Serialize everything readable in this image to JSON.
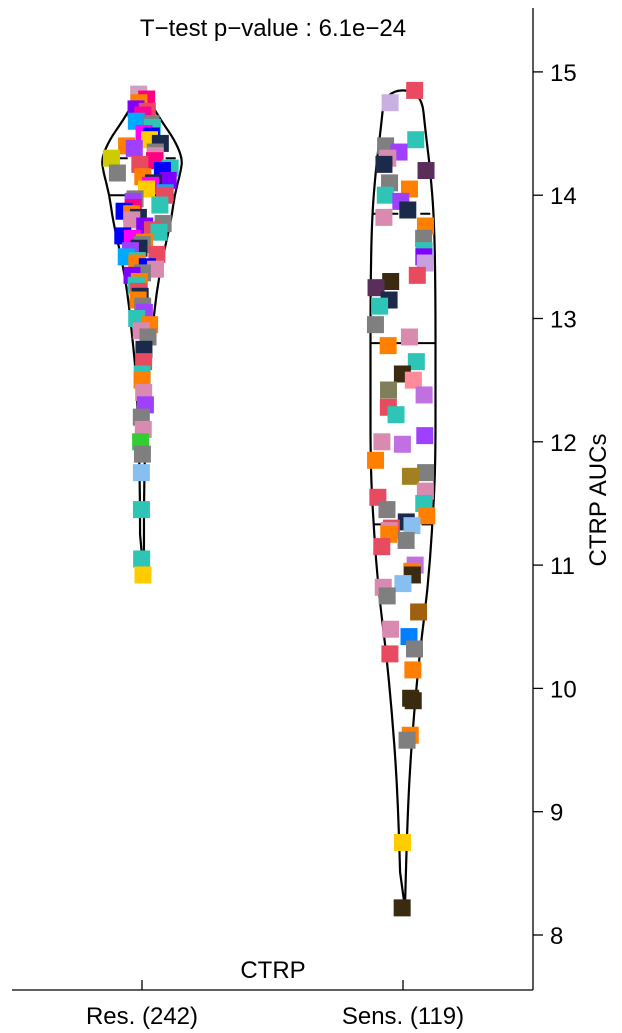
{
  "chart_data": {
    "type": "violin",
    "title": "T−test p−value : 6.1e−24",
    "panel_label": "CTRP",
    "ylabel": "CTRP AUCs",
    "ylim": [
      7.6,
      15.5
    ],
    "yticks": [
      "8",
      "9",
      "10",
      "11",
      "12",
      "13",
      "14",
      "15"
    ],
    "orientation_y_axis": "right",
    "grid": false,
    "categories": [
      "Res. (242)",
      "Sens. (119)"
    ],
    "groups": [
      {
        "name": "Res. (242)",
        "n": 242,
        "min": 10.9,
        "max": 14.85,
        "median": 14.0,
        "q1": 13.35,
        "q3": 14.3,
        "violin": [
          [
            10.9,
            0.03
          ],
          [
            11.6,
            0.03
          ],
          [
            12.2,
            0.06
          ],
          [
            12.6,
            0.1
          ],
          [
            12.9,
            0.16
          ],
          [
            13.2,
            0.22
          ],
          [
            13.5,
            0.32
          ],
          [
            13.8,
            0.45
          ],
          [
            14.0,
            0.5
          ],
          [
            14.2,
            0.6
          ],
          [
            14.3,
            0.62
          ],
          [
            14.45,
            0.5
          ],
          [
            14.6,
            0.3
          ],
          [
            14.75,
            0.13
          ],
          [
            14.85,
            0.03
          ]
        ]
      },
      {
        "name": "Sens. (119)",
        "n": 119,
        "min": 8.22,
        "max": 14.85,
        "median": 12.8,
        "q1": 11.33,
        "q3": 13.85,
        "violin": [
          [
            8.22,
            0.03
          ],
          [
            8.8,
            0.06
          ],
          [
            9.3,
            0.1
          ],
          [
            9.8,
            0.17
          ],
          [
            10.3,
            0.26
          ],
          [
            10.8,
            0.38
          ],
          [
            11.3,
            0.45
          ],
          [
            11.8,
            0.5
          ],
          [
            12.5,
            0.5
          ],
          [
            13.2,
            0.5
          ],
          [
            13.8,
            0.48
          ],
          [
            14.2,
            0.42
          ],
          [
            14.5,
            0.35
          ],
          [
            14.85,
            0.28
          ]
        ]
      }
    ],
    "points": {
      "Res. (242)": [
        {
          "y": 14.82,
          "c": "#d0a0c0"
        },
        {
          "y": 14.78,
          "c": "#ff0080"
        },
        {
          "y": 14.75,
          "c": "#ff7f00"
        },
        {
          "y": 14.7,
          "c": "#8000ff"
        },
        {
          "y": 14.68,
          "c": "#e84a5f"
        },
        {
          "y": 14.65,
          "c": "#ff0099"
        },
        {
          "y": 14.6,
          "c": "#00aaff"
        },
        {
          "y": 14.58,
          "c": "#7f7f7f"
        },
        {
          "y": 14.55,
          "c": "#2ec4b6"
        },
        {
          "y": 14.5,
          "c": "#ff00ff"
        },
        {
          "y": 14.48,
          "c": "#0000ff"
        },
        {
          "y": 14.45,
          "c": "#ffcc00"
        },
        {
          "y": 14.42,
          "c": "#1b2a4a"
        },
        {
          "y": 14.4,
          "c": "#ff7f00"
        },
        {
          "y": 14.38,
          "c": "#a040ff"
        },
        {
          "y": 14.35,
          "c": "#7f7f7f"
        },
        {
          "y": 14.32,
          "c": "#d98ab0"
        },
        {
          "y": 14.3,
          "c": "#cccc00"
        },
        {
          "y": 14.28,
          "c": "#ff0080"
        },
        {
          "y": 14.25,
          "c": "#e84a5f"
        },
        {
          "y": 14.22,
          "c": "#2ec4b6"
        },
        {
          "y": 14.2,
          "c": "#0000ff"
        },
        {
          "y": 14.18,
          "c": "#7f7f7f"
        },
        {
          "y": 14.15,
          "c": "#ff7f00"
        },
        {
          "y": 14.12,
          "c": "#8000ff"
        },
        {
          "y": 14.1,
          "c": "#1b2a4a"
        },
        {
          "y": 14.08,
          "c": "#ff00ff"
        },
        {
          "y": 14.05,
          "c": "#ffcc00"
        },
        {
          "y": 14.02,
          "c": "#00aaff"
        },
        {
          "y": 14.0,
          "c": "#e84a5f"
        },
        {
          "y": 13.97,
          "c": "#7f7f7f"
        },
        {
          "y": 13.95,
          "c": "#a040ff"
        },
        {
          "y": 13.92,
          "c": "#2ec4b6"
        },
        {
          "y": 13.9,
          "c": "#ff0080"
        },
        {
          "y": 13.87,
          "c": "#0000ff"
        },
        {
          "y": 13.85,
          "c": "#ff7f00"
        },
        {
          "y": 13.82,
          "c": "#1b2a4a"
        },
        {
          "y": 13.8,
          "c": "#d98ab0"
        },
        {
          "y": 13.77,
          "c": "#7f7f7f"
        },
        {
          "y": 13.75,
          "c": "#8000ff"
        },
        {
          "y": 13.72,
          "c": "#e84a5f"
        },
        {
          "y": 13.7,
          "c": "#2ec4b6"
        },
        {
          "y": 13.67,
          "c": "#0000ff"
        },
        {
          "y": 13.65,
          "c": "#ff00ff"
        },
        {
          "y": 13.62,
          "c": "#ff7f00"
        },
        {
          "y": 13.6,
          "c": "#7f7f7f"
        },
        {
          "y": 13.57,
          "c": "#1b2a4a"
        },
        {
          "y": 13.55,
          "c": "#a040ff"
        },
        {
          "y": 13.52,
          "c": "#e84a5f"
        },
        {
          "y": 13.5,
          "c": "#00aaff"
        },
        {
          "y": 13.47,
          "c": "#2ec4b6"
        },
        {
          "y": 13.45,
          "c": "#ff7f00"
        },
        {
          "y": 13.42,
          "c": "#0000ff"
        },
        {
          "y": 13.4,
          "c": "#d98ab0"
        },
        {
          "y": 13.37,
          "c": "#7f7f7f"
        },
        {
          "y": 13.35,
          "c": "#8000ff"
        },
        {
          "y": 13.3,
          "c": "#ff7f00"
        },
        {
          "y": 13.27,
          "c": "#2ec4b6"
        },
        {
          "y": 13.22,
          "c": "#e84a5f"
        },
        {
          "y": 13.18,
          "c": "#1b2a4a"
        },
        {
          "y": 13.15,
          "c": "#ff7f00"
        },
        {
          "y": 13.1,
          "c": "#7f7f7f"
        },
        {
          "y": 13.05,
          "c": "#a040ff"
        },
        {
          "y": 13.0,
          "c": "#2ec4b6"
        },
        {
          "y": 12.95,
          "c": "#ff7f00"
        },
        {
          "y": 12.9,
          "c": "#d98ab0"
        },
        {
          "y": 12.85,
          "c": "#7f7f7f"
        },
        {
          "y": 12.75,
          "c": "#1b2a4a"
        },
        {
          "y": 12.65,
          "c": "#e84a5f"
        },
        {
          "y": 12.55,
          "c": "#2ec4b6"
        },
        {
          "y": 12.5,
          "c": "#ff7f00"
        },
        {
          "y": 12.4,
          "c": "#d98ab0"
        },
        {
          "y": 12.3,
          "c": "#a040ff"
        },
        {
          "y": 12.2,
          "c": "#7f7f7f"
        },
        {
          "y": 12.1,
          "c": "#d98ab0"
        },
        {
          "y": 12.0,
          "c": "#33cc33"
        },
        {
          "y": 11.9,
          "c": "#7f7f7f"
        },
        {
          "y": 11.75,
          "c": "#87c0f0"
        },
        {
          "y": 11.45,
          "c": "#2ec4b6"
        },
        {
          "y": 11.05,
          "c": "#2ec4b6"
        },
        {
          "y": 10.92,
          "c": "#ffcc00"
        }
      ],
      "Sens. (119)": [
        {
          "y": 14.85,
          "c": "#e84a5f"
        },
        {
          "y": 14.75,
          "c": "#c8b0e0"
        },
        {
          "y": 14.45,
          "c": "#2ec4b6"
        },
        {
          "y": 14.4,
          "c": "#7f7f7f"
        },
        {
          "y": 14.35,
          "c": "#a040ff"
        },
        {
          "y": 14.3,
          "c": "#d98ab0"
        },
        {
          "y": 14.25,
          "c": "#1b2a4a"
        },
        {
          "y": 14.2,
          "c": "#5a2e5a"
        },
        {
          "y": 14.1,
          "c": "#7f7f7f"
        },
        {
          "y": 14.05,
          "c": "#ff7f00"
        },
        {
          "y": 14.0,
          "c": "#2ec4b6"
        },
        {
          "y": 13.95,
          "c": "#a040ff"
        },
        {
          "y": 13.88,
          "c": "#1b2a4a"
        },
        {
          "y": 13.82,
          "c": "#d98ab0"
        },
        {
          "y": 13.75,
          "c": "#ff7f00"
        },
        {
          "y": 13.65,
          "c": "#7f7f7f"
        },
        {
          "y": 13.55,
          "c": "#2ec4b6"
        },
        {
          "y": 13.5,
          "c": "#8000ff"
        },
        {
          "y": 13.45,
          "c": "#c8a0e0"
        },
        {
          "y": 13.35,
          "c": "#e84a5f"
        },
        {
          "y": 13.3,
          "c": "#3a2a10"
        },
        {
          "y": 13.25,
          "c": "#5a2e5a"
        },
        {
          "y": 13.15,
          "c": "#1b2a4a"
        },
        {
          "y": 13.1,
          "c": "#2ec4b6"
        },
        {
          "y": 12.95,
          "c": "#7f7f7f"
        },
        {
          "y": 12.85,
          "c": "#d98ab0"
        },
        {
          "y": 12.78,
          "c": "#ff7f00"
        },
        {
          "y": 12.65,
          "c": "#2ec4b6"
        },
        {
          "y": 12.55,
          "c": "#3a2a10"
        },
        {
          "y": 12.5,
          "c": "#ff8a9a"
        },
        {
          "y": 12.42,
          "c": "#7f7f5a"
        },
        {
          "y": 12.38,
          "c": "#c070e0"
        },
        {
          "y": 12.28,
          "c": "#e84a5f"
        },
        {
          "y": 12.22,
          "c": "#2ec4b6"
        },
        {
          "y": 12.05,
          "c": "#a040ff"
        },
        {
          "y": 12.0,
          "c": "#d98ab0"
        },
        {
          "y": 11.98,
          "c": "#c070e0"
        },
        {
          "y": 11.85,
          "c": "#ff7f00"
        },
        {
          "y": 11.75,
          "c": "#7f7f7f"
        },
        {
          "y": 11.72,
          "c": "#a08020"
        },
        {
          "y": 11.6,
          "c": "#d98ab0"
        },
        {
          "y": 11.55,
          "c": "#e84a5f"
        },
        {
          "y": 11.5,
          "c": "#2ec4b6"
        },
        {
          "y": 11.45,
          "c": "#7f7f7f"
        },
        {
          "y": 11.4,
          "c": "#ff7f00"
        },
        {
          "y": 11.35,
          "c": "#1b2a4a"
        },
        {
          "y": 11.32,
          "c": "#87c0f0"
        },
        {
          "y": 11.3,
          "c": "#e84a5f"
        },
        {
          "y": 11.28,
          "c": "#d98ab0"
        },
        {
          "y": 11.25,
          "c": "#ff7f00"
        },
        {
          "y": 11.2,
          "c": "#7f7f7f"
        },
        {
          "y": 11.15,
          "c": "#e84a5f"
        },
        {
          "y": 11.0,
          "c": "#c070e0"
        },
        {
          "y": 10.95,
          "c": "#ff7f00"
        },
        {
          "y": 10.92,
          "c": "#3a2a10"
        },
        {
          "y": 10.85,
          "c": "#87c0f0"
        },
        {
          "y": 10.82,
          "c": "#d98ab0"
        },
        {
          "y": 10.75,
          "c": "#7f7f7f"
        },
        {
          "y": 10.62,
          "c": "#a06010"
        },
        {
          "y": 10.48,
          "c": "#d98ab0"
        },
        {
          "y": 10.42,
          "c": "#0080ff"
        },
        {
          "y": 10.32,
          "c": "#7f7f7f"
        },
        {
          "y": 10.28,
          "c": "#e84a5f"
        },
        {
          "y": 10.15,
          "c": "#ff7f00"
        },
        {
          "y": 9.92,
          "c": "#3a2a10"
        },
        {
          "y": 9.9,
          "c": "#3a2a10"
        },
        {
          "y": 9.62,
          "c": "#ff7f00"
        },
        {
          "y": 9.58,
          "c": "#7f7f7f"
        },
        {
          "y": 8.75,
          "c": "#ffcc00"
        },
        {
          "y": 8.22,
          "c": "#3a2a10"
        }
      ]
    }
  }
}
